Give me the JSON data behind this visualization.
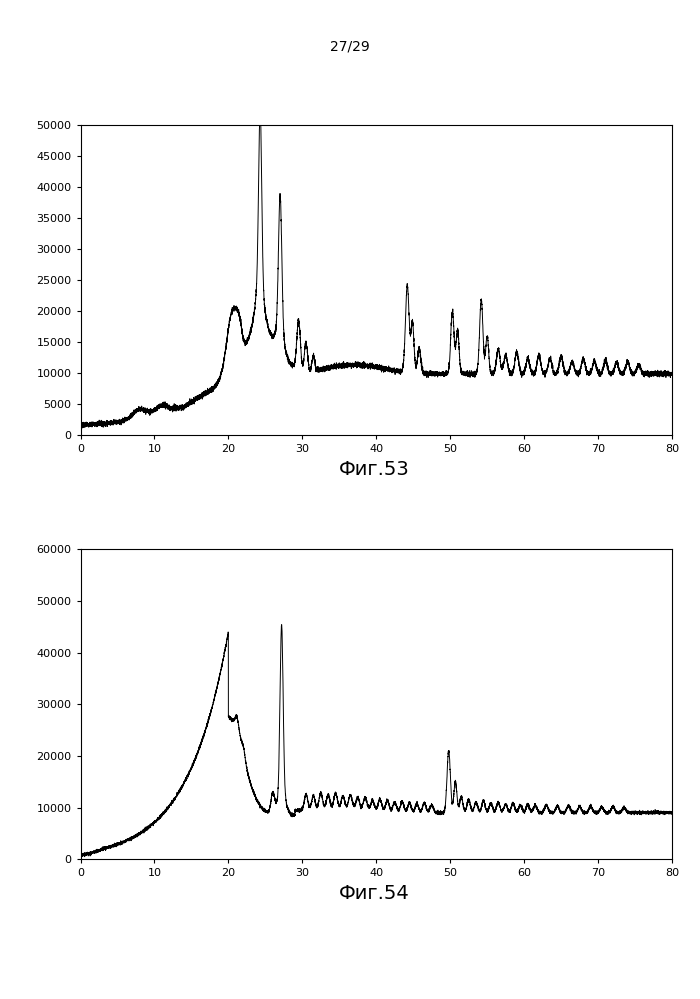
{
  "page_label": "27/29",
  "fig1_label": "Фиг.53",
  "fig2_label": "Фиг.54",
  "fig1_ylim": [
    0,
    50000
  ],
  "fig2_ylim": [
    0,
    60000
  ],
  "xlim": [
    0,
    80
  ],
  "fig1_yticks": [
    0,
    5000,
    10000,
    15000,
    20000,
    25000,
    30000,
    35000,
    40000,
    45000,
    50000
  ],
  "fig2_yticks": [
    0,
    10000,
    20000,
    30000,
    40000,
    50000,
    60000
  ],
  "xticks": [
    0,
    10,
    20,
    30,
    40,
    50,
    60,
    70,
    80
  ],
  "background_color": "#ffffff",
  "line_color": "#000000"
}
